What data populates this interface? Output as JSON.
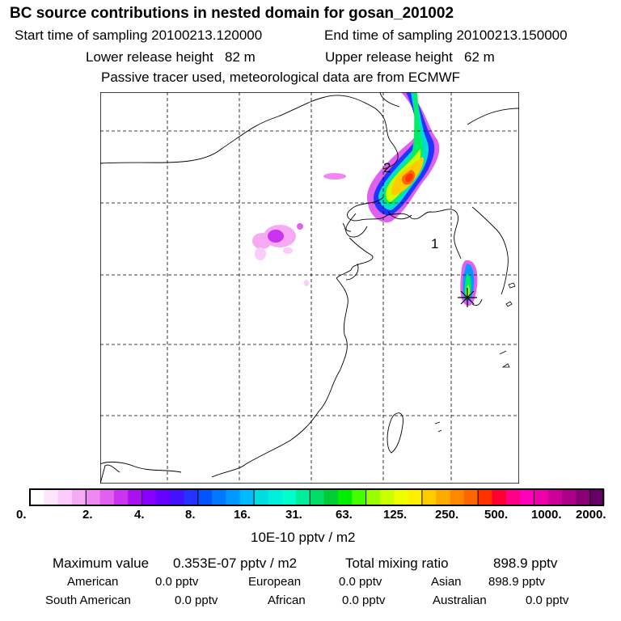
{
  "header": {
    "title": "BC  source contributions in nested domain for gosan_201002",
    "start_label": "Start time of sampling 20100213.120000",
    "end_label": "End time of sampling 20100213.150000",
    "lower_height": "Lower release height   82 m",
    "upper_height": "Upper release height   62 m",
    "note": "Passive tracer used, meteorological data are from ECMWF"
  },
  "colors": {
    "coast": "#000000",
    "grid": "#000000",
    "receptor": "#ff0000"
  },
  "chart_data": {
    "type": "heatmap",
    "title": "BC  source contributions in nested domain for gosan_201002",
    "units_label": "10E-10 pptv / m2",
    "colorbar_ticks": [
      "0.",
      "2.",
      "4.",
      "8.",
      "16.",
      "31.",
      "63.",
      "125.",
      "250.",
      "500.",
      "1000.",
      "2000."
    ],
    "colorbar_colors": [
      "#ffffff",
      "#fde6fd",
      "#fbccfb",
      "#f6aaf6",
      "#ef88f1",
      "#e060f0",
      "#cc33f0",
      "#aa10f0",
      "#8800ff",
      "#6600ff",
      "#4411ff",
      "#2233ff",
      "#0055ff",
      "#0077ff",
      "#0099ff",
      "#00bbff",
      "#00dddd",
      "#00eedd",
      "#00ffcc",
      "#00ee99",
      "#00dd66",
      "#00cc33",
      "#00ee00",
      "#44ff00",
      "#99ff00",
      "#ccff00",
      "#eeff00",
      "#ffee00",
      "#ffcc00",
      "#ffaa00",
      "#ff8800",
      "#ff6600",
      "#ff3300",
      "#ff0033",
      "#ff0088",
      "#ff00bb",
      "#ee00aa",
      "#cc0099",
      "#aa0088",
      "#880077",
      "#660066"
    ],
    "region_labels": [
      "1",
      "2"
    ],
    "maximum_value": "0.353E-07 pptv / m2",
    "total_mixing_ratio": "898.9 pptv"
  },
  "stats": {
    "max_label": "Maximum value",
    "max_value": "0.353E-07 pptv / m2",
    "total_label": "Total mixing ratio",
    "total_value": "898.9 pptv"
  },
  "regions": [
    {
      "name": "American",
      "value": "0.0 pptv"
    },
    {
      "name": "European",
      "value": "0.0 pptv"
    },
    {
      "name": "Asian",
      "value": "898.9 pptv"
    },
    {
      "name": "South American",
      "value": "0.0 pptv"
    },
    {
      "name": "African",
      "value": "0.0 pptv"
    },
    {
      "name": "Australian",
      "value": "0.0 pptv"
    }
  ]
}
